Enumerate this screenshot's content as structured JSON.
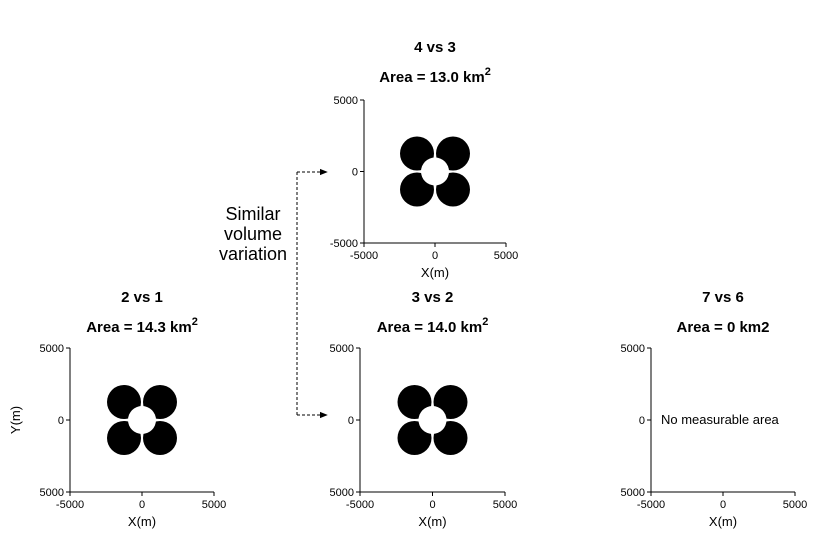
{
  "annotation": {
    "lines": [
      "Similar",
      "volume",
      "variation"
    ]
  },
  "panels": [
    {
      "id": "p43",
      "comparison": "4 vs 3",
      "area_prefix": "Area = 13.0 km",
      "area_sup": "2",
      "x_ticks": [
        "-5000",
        "0",
        "5000"
      ],
      "y_ticks": [
        "5000",
        "0",
        "-5000"
      ],
      "xlabel": "X(m)",
      "ylabel": "",
      "has_pattern": true,
      "message": ""
    },
    {
      "id": "p21",
      "comparison": "2 vs 1",
      "area_prefix": "Area = 14.3 km",
      "area_sup": "2",
      "x_ticks": [
        "-5000",
        "0",
        "5000"
      ],
      "y_ticks": [
        "5000",
        "0",
        "5000"
      ],
      "xlabel": "X(m)",
      "ylabel": "Y(m)",
      "has_pattern": true,
      "message": ""
    },
    {
      "id": "p32",
      "comparison": "3 vs 2",
      "area_prefix": "Area = 14.0 km",
      "area_sup": "2",
      "x_ticks": [
        "-5000",
        "0",
        "5000"
      ],
      "y_ticks": [
        "5000",
        "0",
        "5000"
      ],
      "xlabel": "X(m)",
      "ylabel": "",
      "has_pattern": true,
      "message": ""
    },
    {
      "id": "p76",
      "comparison": "7 vs 6",
      "area_prefix": "Area = 0 km2",
      "area_sup": "",
      "x_ticks": [
        "-5000",
        "0",
        "5000"
      ],
      "y_ticks": [
        "5000",
        "0",
        "5000"
      ],
      "xlabel": "X(m)",
      "ylabel": "",
      "has_pattern": false,
      "message": "No measurable area"
    }
  ],
  "colors": {
    "ink": "#000000",
    "background": "#ffffff"
  }
}
